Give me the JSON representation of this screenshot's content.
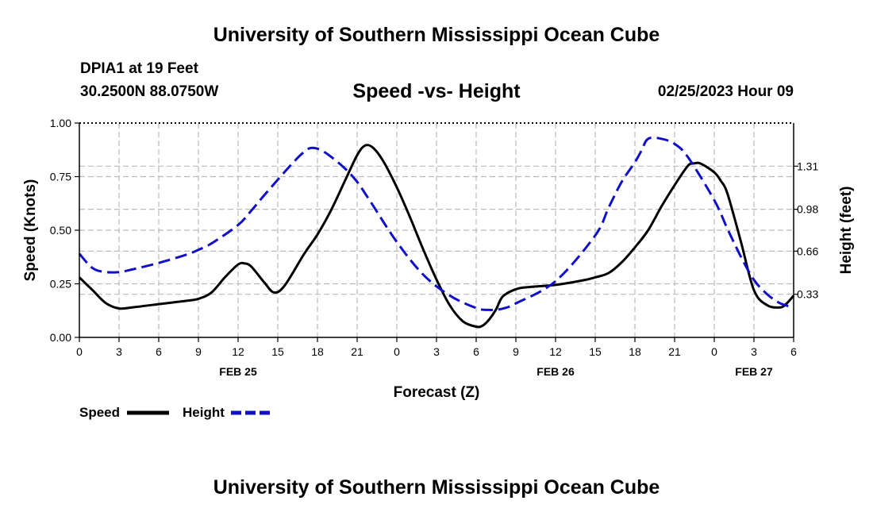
{
  "header": {
    "title_top": "University of Southern Mississippi Ocean Cube",
    "title_bottom": "University of Southern Mississippi Ocean Cube",
    "station": "DPIA1 at 19 Feet",
    "coords": "30.2500N  88.0750W",
    "subtitle": "Speed -vs- Height",
    "datestamp": "02/25/2023 Hour 09"
  },
  "colors": {
    "speed": "#000000",
    "height": "#1010c8",
    "grid": "#bbbbbb"
  },
  "chart_data": {
    "type": "line",
    "title": "Speed -vs- Height",
    "xlabel": "Forecast (Z)",
    "ylabel": "Speed (Knots)",
    "y2label": "Height (feet)",
    "xlim": [
      0,
      54
    ],
    "ylim": [
      0,
      1
    ],
    "y2lim": [
      0,
      1.64
    ],
    "x_tick_values": [
      0,
      3,
      6,
      9,
      12,
      15,
      18,
      21,
      24,
      27,
      30,
      33,
      36,
      39,
      42,
      45,
      48,
      51,
      54
    ],
    "x_tick_labels": [
      "0",
      "3",
      "6",
      "9",
      "12",
      "15",
      "18",
      "21",
      "0",
      "3",
      "6",
      "9",
      "12",
      "15",
      "18",
      "21",
      "0",
      "3",
      "6"
    ],
    "date_labels": [
      {
        "x": 12,
        "label": "FEB 25"
      },
      {
        "x": 36,
        "label": "FEB 26"
      },
      {
        "x": 51,
        "label": "FEB 27"
      }
    ],
    "y_ticks": [
      0,
      0.25,
      0.5,
      0.75,
      1.0
    ],
    "y_tick_labels": [
      "0.00",
      "0.25",
      "0.50",
      "0.75",
      "1.00"
    ],
    "y2_ticks": [
      0.33,
      0.66,
      0.98,
      1.31
    ],
    "y2_tick_labels": [
      "0.33",
      "0.66",
      "0.98",
      "1.31"
    ],
    "grid": true,
    "legend_position": "bottom-left",
    "series": [
      {
        "name": "Speed",
        "axis": "left",
        "style": "solid",
        "x": [
          0,
          1,
          2,
          3,
          4,
          6,
          8,
          9,
          10,
          11,
          12,
          12.5,
          13,
          14,
          14.7,
          15.5,
          17,
          18,
          19,
          20,
          21,
          21.6,
          22.2,
          23,
          24,
          25,
          26,
          27,
          28,
          29,
          30,
          30.5,
          31,
          31.5,
          32,
          33,
          34,
          36,
          38,
          39,
          40,
          41,
          42,
          43,
          44,
          45,
          46,
          46.5,
          47,
          48,
          48.5,
          49,
          50,
          51,
          52,
          53,
          53.5,
          54
        ],
        "y": [
          0.28,
          0.22,
          0.16,
          0.135,
          0.14,
          0.155,
          0.17,
          0.18,
          0.21,
          0.28,
          0.34,
          0.345,
          0.33,
          0.255,
          0.21,
          0.24,
          0.39,
          0.48,
          0.59,
          0.72,
          0.85,
          0.895,
          0.885,
          0.82,
          0.7,
          0.56,
          0.41,
          0.27,
          0.15,
          0.075,
          0.05,
          0.055,
          0.085,
          0.13,
          0.19,
          0.225,
          0.235,
          0.245,
          0.265,
          0.28,
          0.3,
          0.35,
          0.42,
          0.5,
          0.61,
          0.71,
          0.8,
          0.812,
          0.81,
          0.77,
          0.73,
          0.67,
          0.45,
          0.22,
          0.15,
          0.14,
          0.16,
          0.195
        ]
      },
      {
        "name": "Height",
        "axis": "right",
        "style": "dashed",
        "x": [
          0,
          1,
          2,
          3,
          4,
          6,
          8,
          9,
          10,
          12,
          13,
          14,
          16,
          17,
          17.6,
          18.5,
          20,
          21,
          22,
          24,
          26,
          28,
          30,
          31,
          32,
          33,
          36,
          39,
          40,
          41,
          42,
          42.5,
          43,
          44,
          45,
          46,
          48,
          49,
          50,
          51,
          52,
          53,
          54
        ],
        "y": [
          0.64,
          0.53,
          0.5,
          0.5,
          0.52,
          0.57,
          0.63,
          0.67,
          0.72,
          0.86,
          0.97,
          1.09,
          1.32,
          1.42,
          1.45,
          1.42,
          1.3,
          1.19,
          1.04,
          0.73,
          0.48,
          0.32,
          0.225,
          0.21,
          0.22,
          0.26,
          0.43,
          0.78,
          0.99,
          1.19,
          1.34,
          1.43,
          1.52,
          1.52,
          1.48,
          1.38,
          1.05,
          0.83,
          0.62,
          0.44,
          0.33,
          0.26,
          0.23
        ]
      }
    ]
  }
}
